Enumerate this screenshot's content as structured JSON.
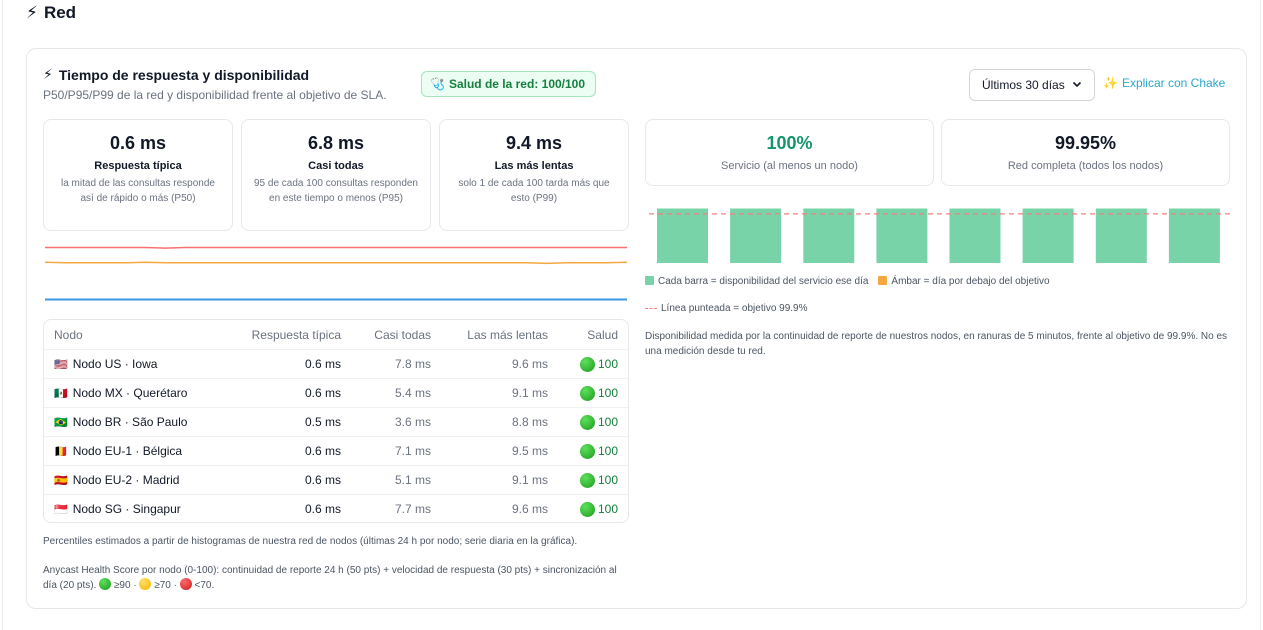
{
  "section": {
    "icon": "lightning-icon",
    "title": "Red"
  },
  "card": {
    "title": "Tiempo de respuesta y disponibilidad",
    "subtitle": "P50/P95/P99 de la red y disponibilidad frente al objetivo de SLA.",
    "health_badge": "Salud de la red: 100/100",
    "period_select": {
      "selected": "Últimos 30 días"
    },
    "explain_link": "Explicar con Chake"
  },
  "latency_stats": [
    {
      "value": "0.6 ms",
      "label": "Respuesta típica",
      "desc": "la mitad de las consultas responde así de rápido o más (P50)"
    },
    {
      "value": "6.8 ms",
      "label": "Casi todas",
      "desc": "95 de cada 100 consultas responden en este tiempo o menos (P95)"
    },
    {
      "value": "9.4 ms",
      "label": "Las más lentas",
      "desc": "solo 1 de cada 100 tarda más que esto (P99)"
    }
  ],
  "latency_sparkline": {
    "series": [
      {
        "key": "p99",
        "color": "#f87171",
        "values": [
          9.4,
          9.4,
          9.4,
          9.4,
          9.4,
          9.4,
          9.3,
          9.4,
          9.4,
          9.4,
          9.4,
          9.4,
          9.4,
          9.4,
          9.4,
          9.4,
          9.4,
          9.4,
          9.4,
          9.4,
          9.4,
          9.4,
          9.4,
          9.4,
          9.4,
          9.4,
          9.4,
          9.4,
          9.4,
          9.4
        ]
      },
      {
        "key": "p95",
        "color": "#f5a742",
        "values": [
          6.9,
          6.8,
          6.8,
          6.8,
          6.8,
          6.9,
          6.8,
          6.8,
          6.8,
          6.8,
          6.8,
          6.8,
          6.8,
          6.8,
          6.8,
          6.8,
          6.8,
          6.8,
          6.8,
          6.8,
          6.8,
          6.8,
          6.8,
          6.8,
          6.8,
          6.7,
          6.8,
          6.8,
          6.8,
          6.9
        ]
      },
      {
        "key": "p50",
        "color": "#3b9ae1",
        "values": [
          0.6,
          0.6,
          0.6,
          0.6,
          0.6,
          0.6,
          0.6,
          0.6,
          0.6,
          0.6,
          0.6,
          0.6,
          0.6,
          0.6,
          0.6,
          0.6,
          0.6,
          0.6,
          0.6,
          0.6,
          0.6,
          0.6,
          0.6,
          0.6,
          0.6,
          0.6,
          0.6,
          0.6,
          0.6,
          0.6
        ]
      }
    ],
    "ymax": 10.5
  },
  "nodes_table": {
    "headers": {
      "node": "Nodo",
      "p50": "Respuesta típica",
      "p95": "Casi todas",
      "p99": "Las más lentas",
      "health": "Salud"
    },
    "rows": [
      {
        "flag": "🇺🇸",
        "name": "Nodo US · Iowa",
        "p50": "0.6 ms",
        "p95": "7.8 ms",
        "p99": "9.6 ms",
        "health": "100"
      },
      {
        "flag": "🇲🇽",
        "name": "Nodo MX · Querétaro",
        "p50": "0.6 ms",
        "p95": "5.4 ms",
        "p99": "9.1 ms",
        "health": "100"
      },
      {
        "flag": "🇧🇷",
        "name": "Nodo BR · São Paulo",
        "p50": "0.5 ms",
        "p95": "3.6 ms",
        "p99": "8.8 ms",
        "health": "100"
      },
      {
        "flag": "🇧🇪",
        "name": "Nodo EU-1 · Bélgica",
        "p50": "0.6 ms",
        "p95": "7.1 ms",
        "p99": "9.5 ms",
        "health": "100"
      },
      {
        "flag": "🇪🇸",
        "name": "Nodo EU-2 · Madrid",
        "p50": "0.6 ms",
        "p95": "5.1 ms",
        "p99": "9.1 ms",
        "health": "100"
      },
      {
        "flag": "🇸🇬",
        "name": "Nodo SG · Singapur",
        "p50": "0.6 ms",
        "p95": "7.7 ms",
        "p99": "9.6 ms",
        "health": "100"
      }
    ]
  },
  "footnotes": {
    "percentiles": "Percentiles estimados a partir de histogramas de nuestra red de nodos (últimas 24 h por nodo; serie diaria en la gráfica).",
    "health_score": "Anycast Health Score por nodo (0-100): continuidad de reporte 24 h (50 pts) + velocidad de respuesta (30 pts) + sincronización al día (20 pts).",
    "legend_green": "≥90",
    "legend_yellow": "≥70",
    "legend_red": "<70."
  },
  "availability_stats": [
    {
      "value": "100%",
      "label": "Servicio (al menos un nodo)",
      "color": "#15956a"
    },
    {
      "value": "99.95%",
      "label": "Red completa (todos los nodos)",
      "color": "#111827"
    }
  ],
  "availability_chart": {
    "bars": [
      100,
      100,
      100,
      100,
      100,
      100,
      100,
      100
    ],
    "target": 99.9,
    "bar_color": "#79d3a8",
    "target_color": "#f08080"
  },
  "availability_legend": {
    "bar_item": "Cada barra = disponibilidad del servicio ese día",
    "amber_item": "Ámbar = día por debajo del objetivo",
    "target_item": "Línea punteada = objetivo 99.9%",
    "bar_color": "#79d3a8",
    "amber_color": "#f5a742"
  },
  "availability_note": "Disponibilidad medida por la continuidad de reporte de nuestros nodos, en ranuras de 5 minutos, frente al objetivo de 99.9%. No es una medición desde tu red."
}
